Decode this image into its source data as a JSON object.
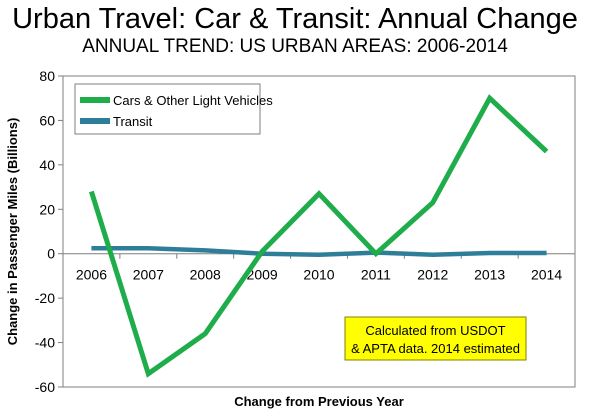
{
  "title": "Urban Travel: Car & Transit: Annual Change",
  "subtitle": "ANNUAL TREND: US URBAN AREAS: 2006-2014",
  "annotation_lines": [
    "Calculated from USDOT",
    "& APTA data. 2014 estimated"
  ],
  "colors": {
    "cars": "#1fad4b",
    "transit": "#2e7e99",
    "annotation_bg": "#ffff00",
    "axis": "#7f7f7f"
  },
  "chart_data": {
    "type": "line",
    "categories": [
      "2006",
      "2007",
      "2008",
      "2009",
      "2010",
      "2011",
      "2012",
      "2013",
      "2014"
    ],
    "series": [
      {
        "name": "Cars & Other Light Vehicles",
        "values": [
          28,
          -54,
          -36,
          1,
          27,
          0,
          23,
          70,
          46
        ]
      },
      {
        "name": "Transit",
        "values": [
          2.5,
          2.5,
          1.5,
          0,
          -0.5,
          0.5,
          -0.5,
          0.3,
          0.3
        ]
      }
    ],
    "xlabel": "Change from Previous Year",
    "ylabel": "Change in Passenger Miles (Billions)",
    "ylim": [
      -60,
      80
    ],
    "yticks": [
      -60,
      -40,
      -20,
      0,
      20,
      40,
      60,
      80
    ],
    "legend": "top-left",
    "grid": false
  }
}
